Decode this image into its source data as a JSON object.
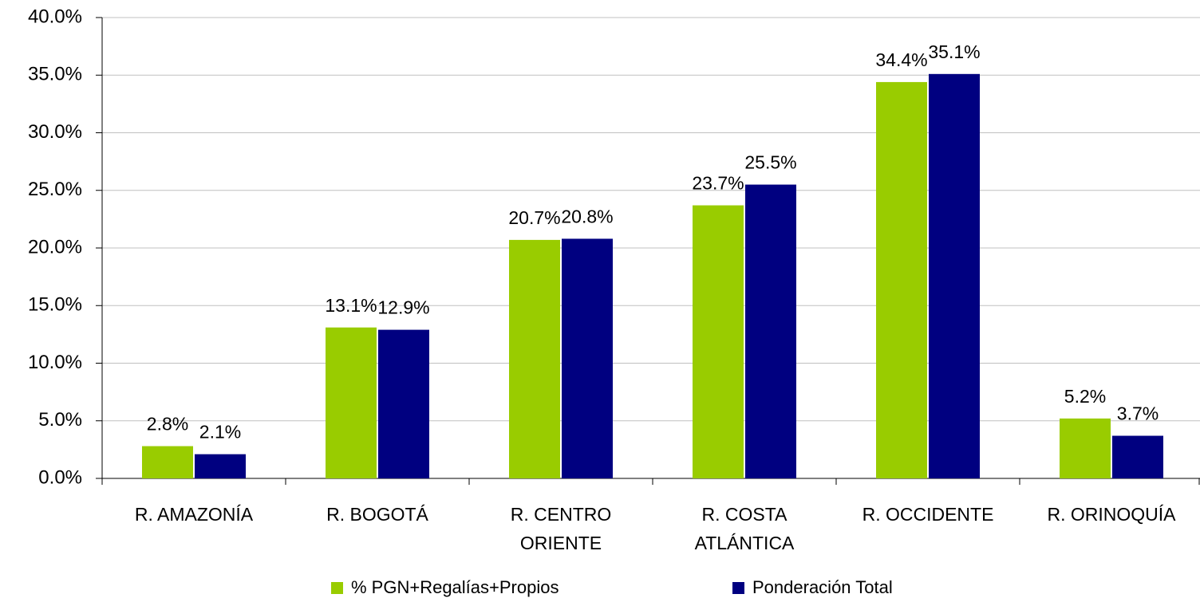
{
  "chart_data": {
    "type": "bar",
    "categories": [
      "R. AMAZONÍA",
      "R. BOGOTÁ",
      "R. CENTRO ORIENTE",
      "R. COSTA ATLÁNTICA",
      "R. OCCIDENTE",
      "R. ORINOQUÍA"
    ],
    "series": [
      {
        "name": "% PGN+Regalías+Propios",
        "color": "#99cc00",
        "values": [
          2.8,
          13.1,
          20.7,
          23.7,
          34.4,
          5.2
        ],
        "value_labels": [
          "2.8%",
          "13.1%",
          "20.7%",
          "23.7%",
          "34.4%",
          "5.2%"
        ]
      },
      {
        "name": "Ponderación Total",
        "color": "#000080",
        "values": [
          2.1,
          12.9,
          20.8,
          25.5,
          35.1,
          3.7
        ],
        "value_labels": [
          "2.1%",
          "12.9%",
          "20.8%",
          "25.5%",
          "35.1%",
          "3.7%"
        ]
      }
    ],
    "ylim": [
      0,
      40
    ],
    "yticks": [
      {
        "value": 0,
        "label": "0.0%"
      },
      {
        "value": 5,
        "label": "5.0%"
      },
      {
        "value": 10,
        "label": "10.0%"
      },
      {
        "value": 15,
        "label": "15.0%"
      },
      {
        "value": 20,
        "label": "20.0%"
      },
      {
        "value": 25,
        "label": "25.0%"
      },
      {
        "value": 30,
        "label": "30.0%"
      },
      {
        "value": 35,
        "label": "35.0%"
      },
      {
        "value": 40,
        "label": "40.0%"
      }
    ],
    "grid": true,
    "legend": "bottom"
  }
}
